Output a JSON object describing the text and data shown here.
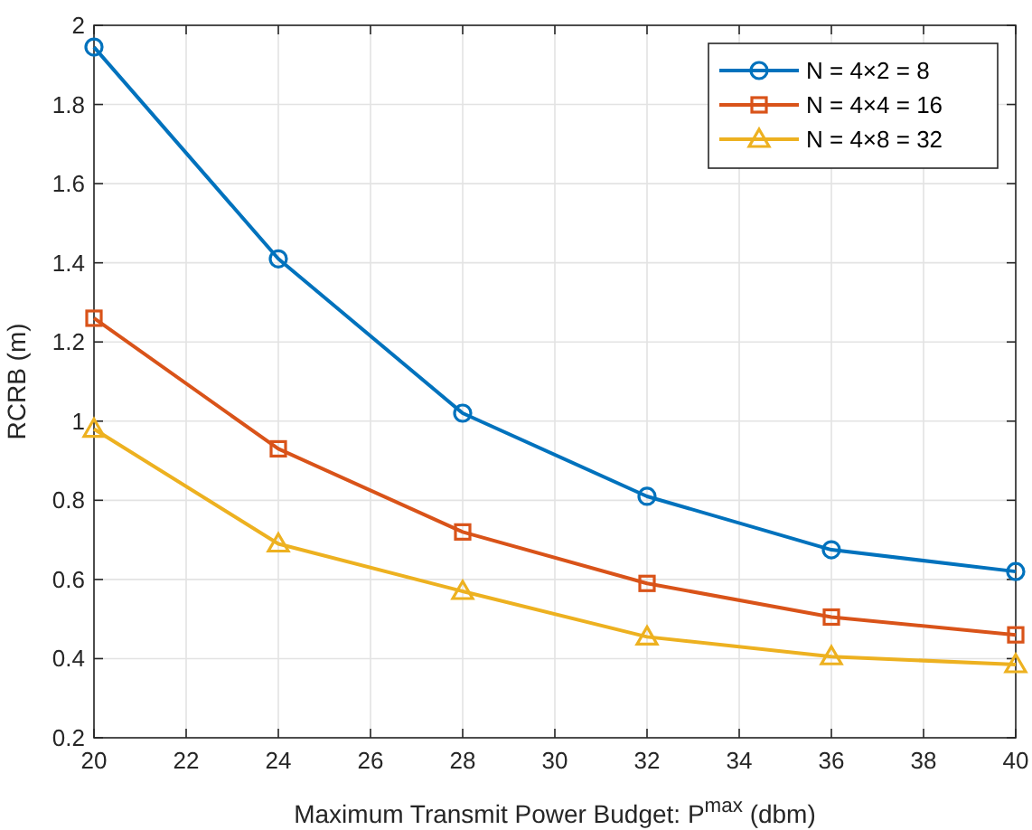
{
  "chart_data": {
    "type": "line",
    "xlabel": "Maximum Transmit Power Budget: P$^{max}$ (dbm)",
    "ylabel": "RCRB (m)",
    "x": [
      20,
      24,
      28,
      32,
      36,
      40
    ],
    "series": [
      {
        "name": "N = 4×2 = 8",
        "color": "#0072bd",
        "marker": "circle",
        "values": [
          1.945,
          1.41,
          1.02,
          0.81,
          0.675,
          0.62
        ]
      },
      {
        "name": "N = 4×4 = 16",
        "color": "#d95319",
        "marker": "square",
        "values": [
          1.26,
          0.93,
          0.72,
          0.59,
          0.505,
          0.46
        ]
      },
      {
        "name": "N = 4×8 = 32",
        "color": "#edb120",
        "marker": "triangle",
        "values": [
          0.98,
          0.69,
          0.57,
          0.455,
          0.405,
          0.385
        ]
      }
    ],
    "xlim": [
      20,
      40
    ],
    "xticks": [
      20,
      22,
      24,
      26,
      28,
      30,
      32,
      34,
      36,
      38,
      40
    ],
    "ylim": [
      0.2,
      2
    ],
    "yticks": [
      0.2,
      0.4,
      0.6,
      0.8,
      1,
      1.2,
      1.4,
      1.6,
      1.8,
      2
    ],
    "grid": true,
    "legend": "top right",
    "line_style": "solid"
  }
}
